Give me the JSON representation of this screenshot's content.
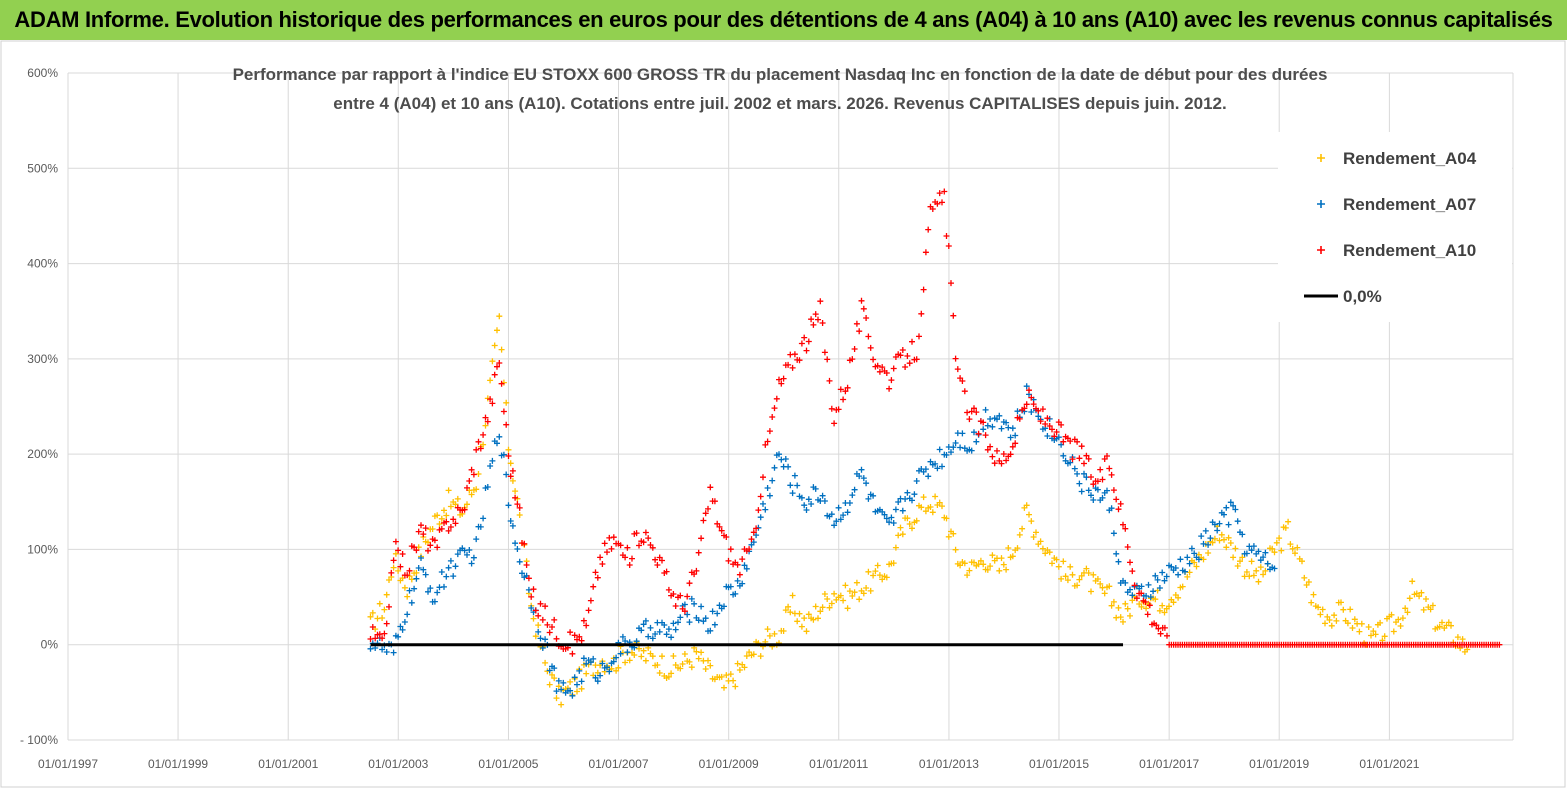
{
  "banner": {
    "title": "ADAM Informe. Evolution historique des performances en euros pour des détentions de 4 ans (A04) à 10 ans (A10) avec les revenus connus capitalisés"
  },
  "chart_data": {
    "type": "scatter",
    "title_lines": [
      "Performance par rapport à l'indice EU STOXX 600 GROSS TR  du placement Nasdaq Inc en fonction de la date de début pour des durées",
      "entre 4 (A04) et 10 ans (A10).  Cotations entre juil. 2002 et mars. 2026. Revenus CAPITALISES depuis juin. 2012."
    ],
    "xlabel": "",
    "ylabel": "",
    "x_ticks": [
      "01/01/1997",
      "01/01/1999",
      "01/01/2001",
      "01/01/2003",
      "01/01/2005",
      "01/01/2007",
      "01/01/2009",
      "01/01/2011",
      "01/01/2013",
      "01/01/2015",
      "01/01/2017",
      "01/01/2019",
      "01/01/2021"
    ],
    "xlim": [
      "1997-01-01",
      "2023-04-01"
    ],
    "y_ticks": [
      "- 100%",
      "0%",
      "100%",
      "200%",
      "300%",
      "400%",
      "500%",
      "600%"
    ],
    "ylim": [
      -100,
      600
    ],
    "grid": true,
    "legend_position": "top-right",
    "series": [
      {
        "name": "Rendement_A04",
        "color": "#ffc000",
        "marker": "plus",
        "x": [
          "2002-07-01",
          "2002-10-01",
          "2002-12-01",
          "2003-03-01",
          "2003-06-01",
          "2003-09-01",
          "2003-12-01",
          "2004-03-01",
          "2004-06-01",
          "2004-09-01",
          "2004-11-01",
          "2005-01-01",
          "2005-03-01",
          "2005-06-01",
          "2005-09-01",
          "2005-12-01",
          "2006-03-01",
          "2006-06-01",
          "2006-09-01",
          "2006-12-01",
          "2007-03-01",
          "2007-06-01",
          "2007-09-01",
          "2007-12-01",
          "2008-03-01",
          "2008-06-01",
          "2008-09-01",
          "2008-12-01",
          "2009-03-01",
          "2009-06-01",
          "2009-09-01",
          "2009-12-01",
          "2010-03-01",
          "2010-06-01",
          "2010-09-01",
          "2010-12-01",
          "2011-03-01",
          "2011-06-01",
          "2011-09-01",
          "2011-12-01",
          "2012-03-01",
          "2012-06-01",
          "2012-09-01",
          "2012-12-01",
          "2013-03-01",
          "2013-06-01",
          "2013-09-01",
          "2013-12-01",
          "2014-03-01",
          "2014-06-01",
          "2014-09-01",
          "2014-12-01",
          "2015-03-01",
          "2015-06-01",
          "2015-09-01",
          "2015-12-01",
          "2016-03-01",
          "2016-06-01",
          "2016-09-01",
          "2016-12-01",
          "2017-03-01",
          "2017-06-01",
          "2017-09-01",
          "2017-12-01",
          "2018-03-01",
          "2018-06-01",
          "2018-09-01",
          "2018-12-01",
          "2019-03-01",
          "2019-06-01",
          "2019-09-01",
          "2019-12-01",
          "2020-03-01",
          "2020-06-01",
          "2020-09-01",
          "2020-12-01",
          "2021-03-01",
          "2021-06-01",
          "2021-09-01",
          "2021-12-01",
          "2022-03-01",
          "2022-06-01"
        ],
        "values": [
          20,
          40,
          90,
          60,
          100,
          130,
          150,
          140,
          170,
          270,
          340,
          210,
          150,
          40,
          -20,
          -55,
          -45,
          -30,
          -15,
          -20,
          -5,
          -10,
          -15,
          -25,
          -20,
          -10,
          -30,
          -45,
          -30,
          -10,
          5,
          10,
          40,
          20,
          40,
          55,
          50,
          60,
          70,
          80,
          120,
          140,
          150,
          140,
          90,
          80,
          90,
          80,
          100,
          140,
          110,
          90,
          70,
          75,
          60,
          50,
          30,
          50,
          50,
          45,
          60,
          80,
          100,
          120,
          100,
          80,
          70,
          100,
          120,
          80,
          40,
          30,
          35,
          20,
          5,
          15,
          25,
          55,
          40,
          20,
          10,
          -5
        ]
      },
      {
        "name": "Rendement_A07",
        "color": "#0070c0",
        "marker": "plus",
        "x": [
          "2002-07-01",
          "2002-10-01",
          "2002-12-01",
          "2003-03-01",
          "2003-06-01",
          "2003-09-01",
          "2003-12-01",
          "2004-03-01",
          "2004-06-01",
          "2004-09-01",
          "2004-11-01",
          "2005-01-01",
          "2005-03-01",
          "2005-06-01",
          "2005-09-01",
          "2005-12-01",
          "2006-03-01",
          "2006-06-01",
          "2006-09-01",
          "2006-12-01",
          "2007-03-01",
          "2007-06-01",
          "2007-09-01",
          "2007-12-01",
          "2008-03-01",
          "2008-06-01",
          "2008-09-01",
          "2008-12-01",
          "2009-03-01",
          "2009-06-01",
          "2009-09-01",
          "2009-12-01",
          "2010-03-01",
          "2010-06-01",
          "2010-09-01",
          "2010-12-01",
          "2011-03-01",
          "2011-06-01",
          "2011-09-01",
          "2011-12-01",
          "2012-03-01",
          "2012-06-01",
          "2012-09-01",
          "2012-12-01",
          "2013-03-01",
          "2013-06-01",
          "2013-09-01",
          "2013-12-01",
          "2014-03-01",
          "2014-06-01",
          "2014-09-01",
          "2014-12-01",
          "2015-03-01",
          "2015-06-01",
          "2015-09-01",
          "2015-12-01",
          "2016-03-01",
          "2016-06-01",
          "2016-09-01",
          "2016-12-01",
          "2017-03-01",
          "2017-06-01",
          "2017-09-01",
          "2017-12-01",
          "2018-03-01",
          "2018-06-01",
          "2018-09-01",
          "2018-12-01"
        ],
        "values": [
          5,
          -5,
          -10,
          40,
          80,
          50,
          80,
          90,
          100,
          180,
          230,
          150,
          100,
          50,
          0,
          -50,
          -45,
          -20,
          -30,
          -10,
          0,
          10,
          20,
          10,
          30,
          40,
          20,
          50,
          60,
          100,
          150,
          200,
          170,
          150,
          160,
          130,
          150,
          180,
          140,
          120,
          150,
          170,
          190,
          200,
          220,
          210,
          240,
          240,
          220,
          260,
          240,
          220,
          200,
          170,
          160,
          150,
          60,
          50,
          60,
          70,
          80,
          90,
          110,
          130,
          140,
          100,
          90,
          80
        ]
      },
      {
        "name": "Rendement_A10",
        "color": "#ff0000",
        "marker": "plus",
        "x": [
          "2002-07-01",
          "2002-10-01",
          "2002-12-01",
          "2003-03-01",
          "2003-06-01",
          "2003-09-01",
          "2003-12-01",
          "2004-03-01",
          "2004-06-01",
          "2004-09-01",
          "2004-11-01",
          "2005-01-01",
          "2005-03-01",
          "2005-06-01",
          "2005-09-01",
          "2005-12-01",
          "2006-03-01",
          "2006-06-01",
          "2006-09-01",
          "2006-12-01",
          "2007-03-01",
          "2007-06-01",
          "2007-09-01",
          "2007-12-01",
          "2008-03-01",
          "2008-06-01",
          "2008-09-01",
          "2008-12-01",
          "2009-03-01",
          "2009-06-01",
          "2009-09-01",
          "2009-12-01",
          "2010-03-01",
          "2010-06-01",
          "2010-09-01",
          "2010-12-01",
          "2011-03-01",
          "2011-06-01",
          "2011-09-01",
          "2011-12-01",
          "2012-03-01",
          "2012-06-01",
          "2012-09-01",
          "2012-12-01",
          "2013-03-01",
          "2013-06-01",
          "2013-09-01",
          "2013-12-01",
          "2014-03-01",
          "2014-06-01",
          "2014-09-01",
          "2014-12-01",
          "2015-03-01",
          "2015-06-01",
          "2015-09-01",
          "2015-12-01",
          "2016-03-01",
          "2016-06-01",
          "2017-01-01",
          "2018-01-01",
          "2019-01-01",
          "2020-01-01",
          "2021-01-01",
          "2022-01-01",
          "2023-01-01"
        ],
        "values": [
          10,
          0,
          100,
          80,
          120,
          100,
          130,
          140,
          200,
          250,
          300,
          200,
          150,
          50,
          30,
          10,
          0,
          20,
          90,
          110,
          90,
          120,
          100,
          60,
          40,
          80,
          160,
          110,
          80,
          100,
          200,
          270,
          300,
          320,
          350,
          240,
          280,
          350,
          300,
          280,
          300,
          310,
          450,
          470,
          280,
          240,
          220,
          190,
          210,
          260,
          240,
          230,
          210,
          200,
          170,
          190,
          130,
          60,
          0,
          0,
          0,
          0,
          0,
          0,
          0
        ]
      },
      {
        "name": "0,0%",
        "color": "#000000",
        "marker": "line",
        "x": [
          "2002-07-01",
          "2016-03-01"
        ],
        "values": [
          0,
          0
        ]
      }
    ]
  }
}
